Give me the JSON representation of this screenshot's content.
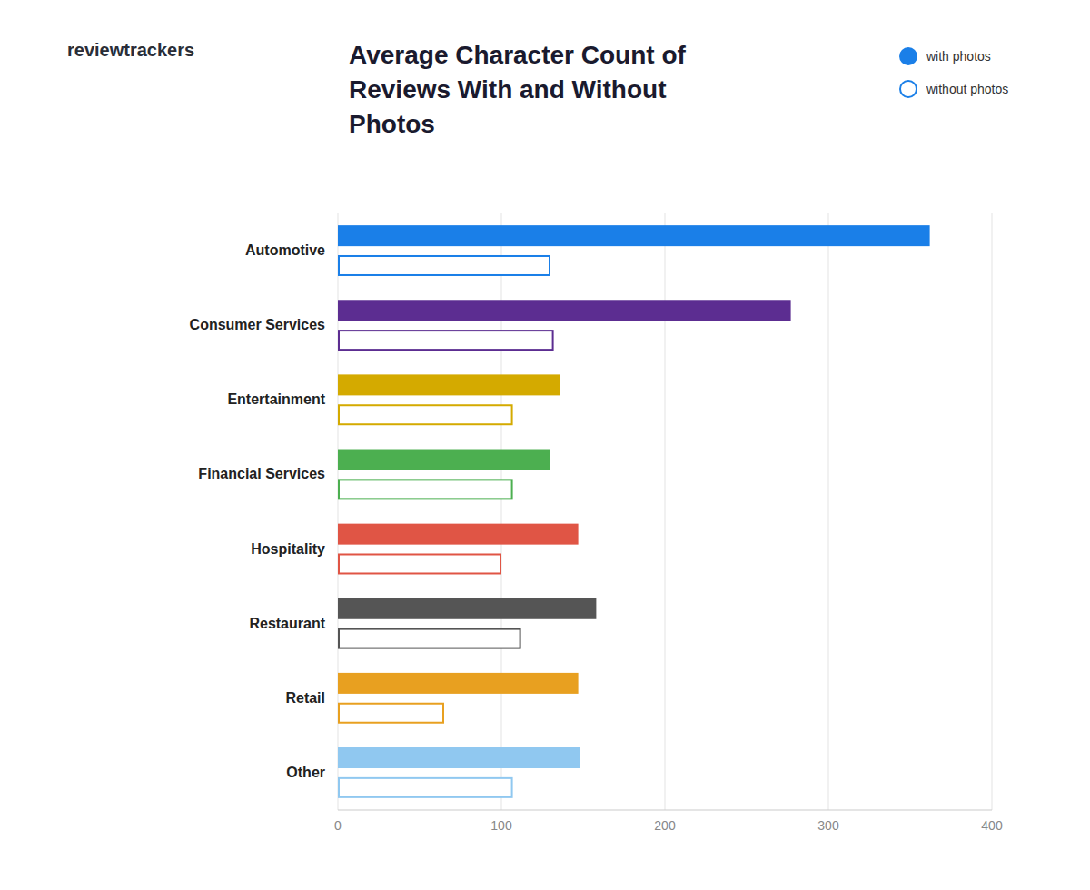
{
  "chart_data": {
    "type": "bar",
    "orientation": "horizontal",
    "title": "Average Character Count of\nReviews With and Without\nPhotos",
    "annotations": [
      "reviewtrackers"
    ],
    "categories": [
      "Automotive",
      "Consumer Services",
      "Entertainment",
      "Financial Services",
      "Hospitality",
      "Restaurant",
      "Retail",
      "Other"
    ],
    "series": [
      {
        "name": "with photos",
        "color": "#1a7fe8",
        "colors": [
          "#1a7fe8",
          "#5c2d91",
          "#d4aa00",
          "#4caf50",
          "#e05545",
          "#555555",
          "#e8a020",
          "#90c8f0"
        ],
        "values": [
          362,
          277,
          136,
          130,
          147,
          158,
          147,
          148
        ]
      },
      {
        "name": "without photos",
        "color": "#1a7fe8",
        "colors": [
          "#1a7fe8",
          "#5c2d91",
          "#d4aa00",
          "#4caf50",
          "#e05545",
          "#555555",
          "#e8a020",
          "#90c8f0"
        ],
        "values": [
          130,
          132,
          107,
          107,
          100,
          112,
          65,
          107
        ]
      }
    ],
    "xlim": [
      0,
      400
    ],
    "xticks": [
      0,
      100,
      200,
      300,
      400
    ],
    "grid": true,
    "legend": "top-right"
  }
}
